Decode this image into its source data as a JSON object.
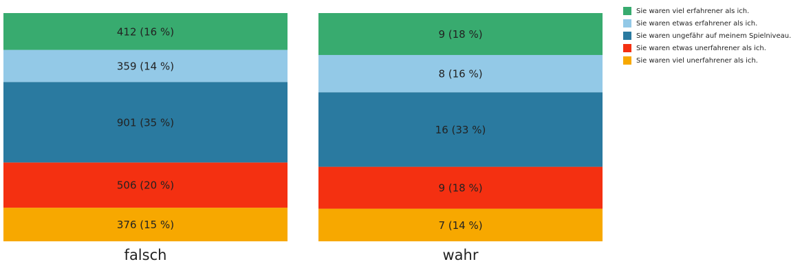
{
  "chart_data": {
    "type": "stacked-percent-bar",
    "categories": [
      "falsch",
      "wahr"
    ],
    "series": [
      {
        "name": "Sie waren viel unerfahrener als ich.",
        "color": "#f7a800",
        "values": [
          376,
          7
        ],
        "value_labels": [
          "376 (15 %)",
          "7 (14 %)"
        ]
      },
      {
        "name": "Sie waren etwas unerfahrener als ich.",
        "color": "#f43011",
        "values": [
          506,
          9
        ],
        "value_labels": [
          "506 (20 %)",
          "9 (18 %)"
        ]
      },
      {
        "name": "Sie waren ungefähr auf meinem Spielniveau.",
        "color": "#2a7aa0",
        "values": [
          901,
          16
        ],
        "value_labels": [
          "901 (35 %)",
          "16 (33 %)"
        ]
      },
      {
        "name": "Sie waren etwas erfahrener als ich.",
        "color": "#93c9e7",
        "values": [
          359,
          8
        ],
        "value_labels": [
          "359 (14 %)",
          "8 (16 %)"
        ]
      },
      {
        "name": "Sie waren viel erfahrener als ich.",
        "color": "#38ab6f",
        "values": [
          412,
          9
        ],
        "value_labels": [
          "412 (16 %)",
          "9 (18 %)"
        ]
      }
    ]
  }
}
